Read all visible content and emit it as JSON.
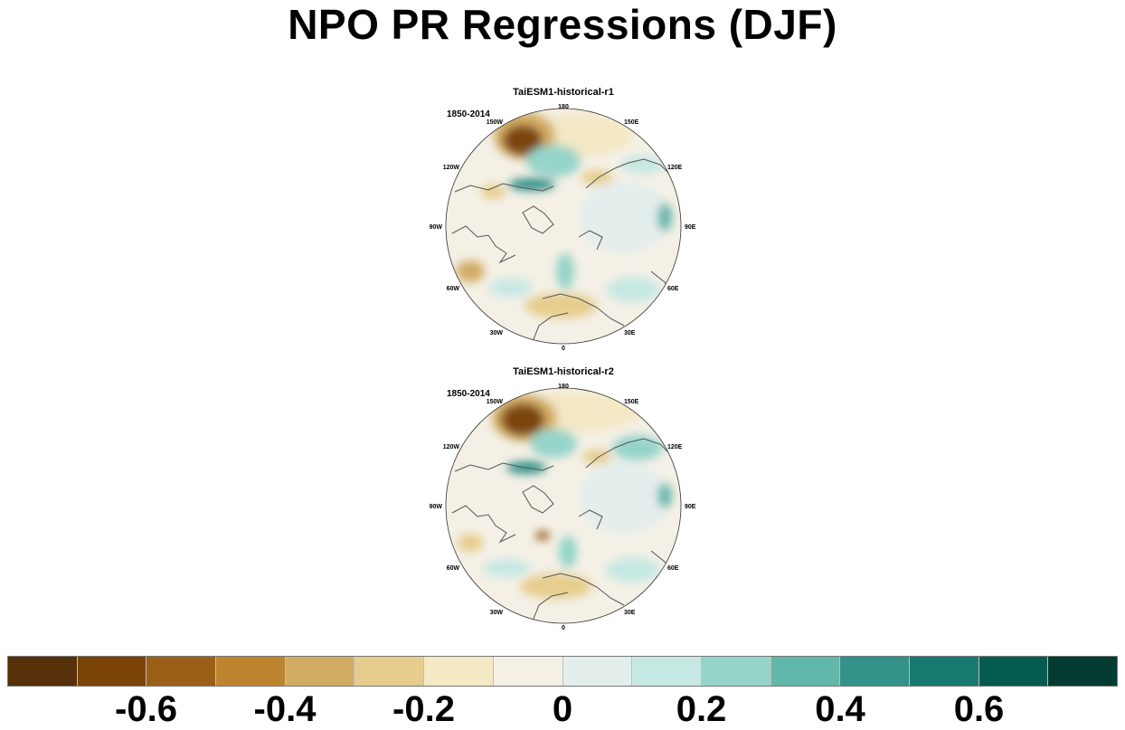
{
  "title": "NPO PR Regressions (DJF)",
  "panels": [
    {
      "title": "TaiESM1-historical-r1",
      "period": "1850-2014",
      "lon_labels": [
        "180",
        "150E",
        "120E",
        "90E",
        "60E",
        "30E",
        "0",
        "30W",
        "60W",
        "90W",
        "120W",
        "150W"
      ]
    },
    {
      "title": "TaiESM1-historical-r2",
      "period": "1850-2014",
      "lon_labels": [
        "180",
        "150E",
        "120E",
        "90E",
        "60E",
        "30E",
        "0",
        "30W",
        "60W",
        "90W",
        "120W",
        "150W"
      ]
    }
  ],
  "colorbar": {
    "colors": [
      "#553009",
      "#7b4407",
      "#9a5f16",
      "#bd8430",
      "#d2ac63",
      "#e6cd8d",
      "#f4e8c5",
      "#f4f0e6",
      "#e4eeed",
      "#c6e8e3",
      "#95d4c9",
      "#63b6aa",
      "#339289",
      "#177a70",
      "#055b50",
      "#023b31"
    ],
    "tick_labels": [
      "-0.6",
      "-0.4",
      "-0.2",
      "0",
      "0.2",
      "0.4",
      "0.6"
    ],
    "tick_values": [
      -0.6,
      -0.4,
      -0.2,
      0,
      0.2,
      0.4,
      0.6
    ]
  }
}
